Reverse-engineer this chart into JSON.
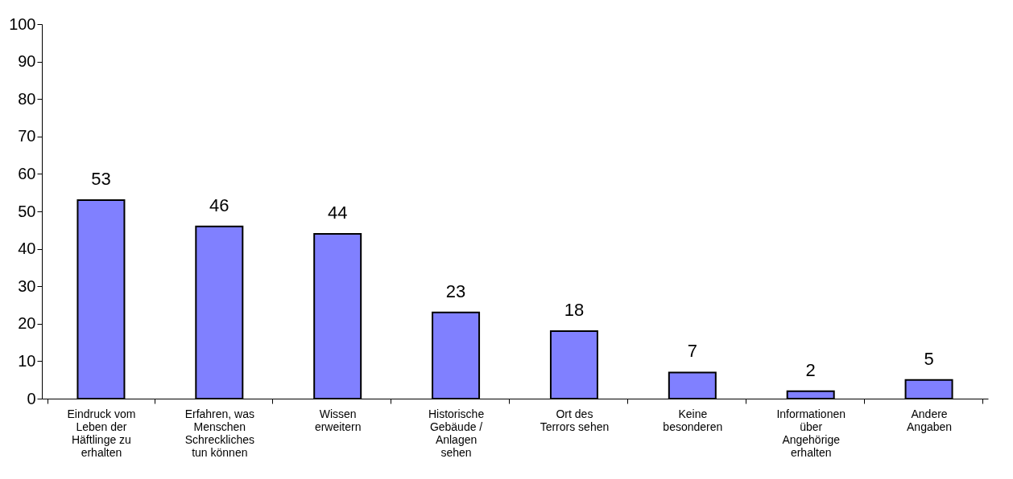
{
  "chart_data": {
    "type": "bar",
    "categories": [
      "Eindruck vom\nLeben der\nHäftlinge zu\nerhalten",
      "Erfahren, was\nMenschen\nSchreckliches\ntun können",
      "Wissen\nerweitern",
      "Historische\nGebäude /\nAnlagen\nsehen",
      "Ort des\nTerrors sehen",
      "Keine\nbesonderen",
      "Informationen\nüber\nAngehörige\nerhalten",
      "Andere\nAngaben"
    ],
    "values": [
      53,
      46,
      44,
      23,
      18,
      7,
      2,
      5
    ],
    "color": "#8080ff",
    "ylim": [
      0,
      100
    ],
    "yticks": [
      0,
      10,
      20,
      30,
      40,
      50,
      60,
      70,
      80,
      90,
      100
    ],
    "grid": false,
    "data_labels": true
  }
}
